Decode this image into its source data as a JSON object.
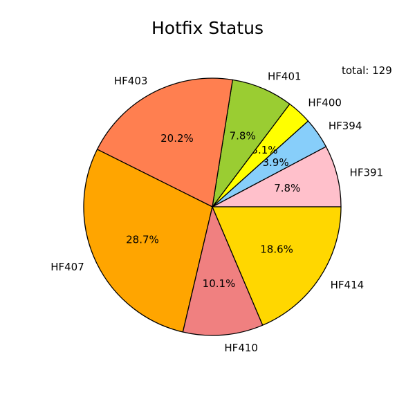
{
  "chart_data": {
    "type": "pie",
    "title": "Hotfix Status",
    "annotation": "total: 129",
    "slices": [
      {
        "label": "HF391",
        "value": 10,
        "pct_label": "7.8%",
        "color": "#FFC0CB"
      },
      {
        "label": "HF394",
        "value": 5,
        "pct_label": "3.9%",
        "color": "#87CEFA"
      },
      {
        "label": "HF400",
        "value": 4,
        "pct_label": "3.1%",
        "color": "#FFFF00"
      },
      {
        "label": "HF401",
        "value": 10,
        "pct_label": "7.8%",
        "color": "#9ACD32"
      },
      {
        "label": "HF403",
        "value": 26,
        "pct_label": "20.2%",
        "color": "#FF7F50"
      },
      {
        "label": "HF407",
        "value": 37,
        "pct_label": "28.7%",
        "color": "#FFA500"
      },
      {
        "label": "HF410",
        "value": 13,
        "pct_label": "10.1%",
        "color": "#F08080"
      },
      {
        "label": "HF414",
        "value": 24,
        "pct_label": "18.6%",
        "color": "#FFD700"
      }
    ],
    "start_angle_deg": 0,
    "direction": "counterclockwise",
    "edge_color": "#000000"
  }
}
